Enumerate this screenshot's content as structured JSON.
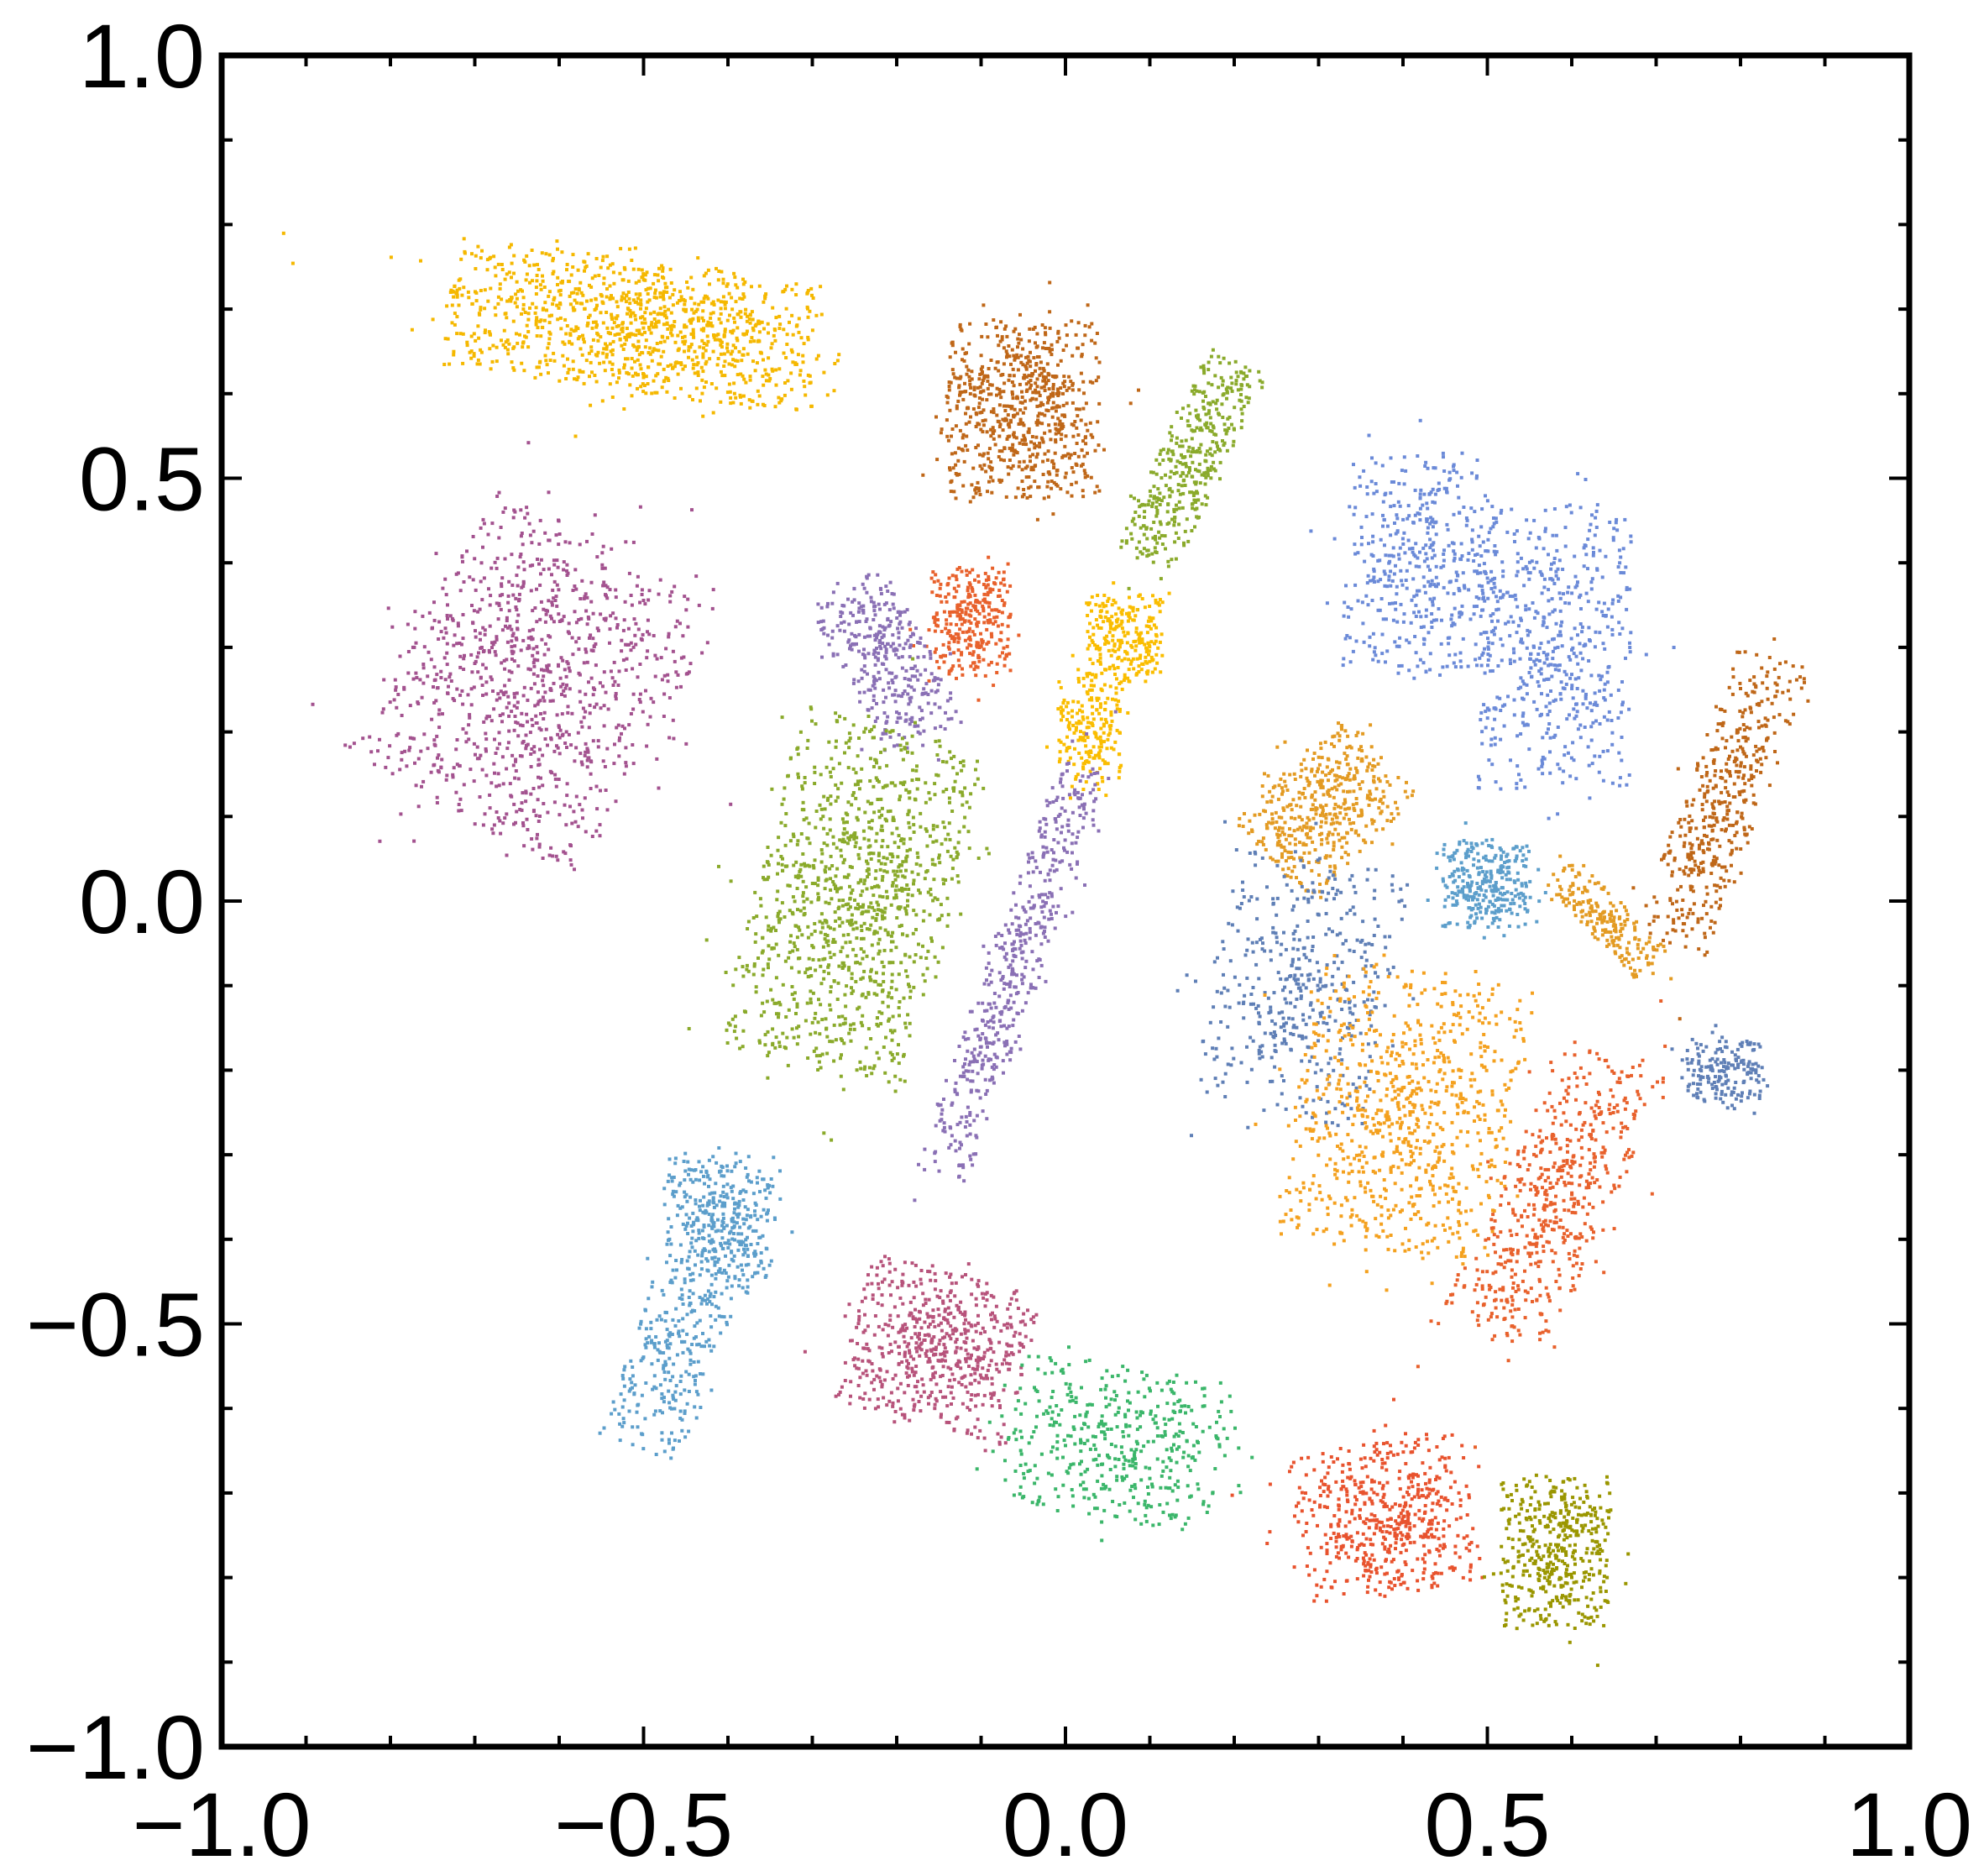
{
  "chart_data": {
    "type": "scatter",
    "title": "",
    "xlabel": "",
    "ylabel": "",
    "xlim": [
      -1.0,
      1.0
    ],
    "ylim": [
      -1.0,
      1.0
    ],
    "grid": false,
    "legend": "none",
    "x_ticks": [
      {
        "value": -1.0,
        "label": "−1.0"
      },
      {
        "value": -0.5,
        "label": "−0.5"
      },
      {
        "value": 0.0,
        "label": "0.0"
      },
      {
        "value": 0.5,
        "label": "0.5"
      },
      {
        "value": 1.0,
        "label": "1.0"
      }
    ],
    "y_ticks": [
      {
        "value": -1.0,
        "label": "−1.0"
      },
      {
        "value": -0.5,
        "label": "−0.5"
      },
      {
        "value": 0.0,
        "label": "0.0"
      },
      {
        "value": 0.5,
        "label": "0.5"
      },
      {
        "value": 1.0,
        "label": "1.0"
      }
    ],
    "minor_tick_step": 0.1,
    "clusters": [
      {
        "color": "#f5b800",
        "center": [
          -0.51,
          0.68
        ],
        "spread": [
          0.17,
          0.06
        ],
        "angle_deg": -8,
        "n": 1100
      },
      {
        "color": "#a3528f",
        "center": [
          -0.63,
          0.26
        ],
        "spread": [
          0.12,
          0.14
        ],
        "angle_deg": -30,
        "n": 1000
      },
      {
        "color": "#bf6718",
        "center": [
          -0.05,
          0.58
        ],
        "spread": [
          0.07,
          0.08
        ],
        "angle_deg": 0,
        "n": 700
      },
      {
        "color": "#8aaa2b",
        "center": [
          0.15,
          0.52
        ],
        "spread": [
          0.03,
          0.1
        ],
        "angle_deg": -25,
        "n": 400
      },
      {
        "color": "#e8612c",
        "center": [
          -0.11,
          0.33
        ],
        "spread": [
          0.035,
          0.05
        ],
        "angle_deg": 0,
        "n": 300
      },
      {
        "color": "#8a70b5",
        "center": [
          -0.21,
          0.28
        ],
        "spread": [
          0.04,
          0.08
        ],
        "angle_deg": 30,
        "n": 350
      },
      {
        "color": "#fabd00",
        "center": [
          0.07,
          0.31
        ],
        "spread": [
          0.035,
          0.04
        ],
        "angle_deg": 0,
        "n": 250
      },
      {
        "color": "#fabd00",
        "center": [
          0.03,
          0.2
        ],
        "spread": [
          0.03,
          0.05
        ],
        "angle_deg": 0,
        "n": 200
      },
      {
        "color": "#8aaa2b",
        "center": [
          -0.25,
          0.0
        ],
        "spread": [
          0.09,
          0.16
        ],
        "angle_deg": -15,
        "n": 1100
      },
      {
        "color": "#8a70b5",
        "center": [
          -0.06,
          -0.08
        ],
        "spread": [
          0.025,
          0.2
        ],
        "angle_deg": -20,
        "n": 500
      },
      {
        "color": "#6b8ad8",
        "center": [
          0.42,
          0.4
        ],
        "spread": [
          0.07,
          0.1
        ],
        "angle_deg": 0,
        "n": 450
      },
      {
        "color": "#6b8ad8",
        "center": [
          0.58,
          0.3
        ],
        "spread": [
          0.07,
          0.13
        ],
        "angle_deg": 0,
        "n": 550
      },
      {
        "color": "#e39b23",
        "center": [
          0.31,
          0.11
        ],
        "spread": [
          0.05,
          0.07
        ],
        "angle_deg": -45,
        "n": 450
      },
      {
        "color": "#bf6718",
        "center": [
          0.78,
          0.12
        ],
        "spread": [
          0.035,
          0.14
        ],
        "angle_deg": -20,
        "n": 450
      },
      {
        "color": "#5c9ecb",
        "center": [
          0.5,
          0.02
        ],
        "spread": [
          0.04,
          0.04
        ],
        "angle_deg": 0,
        "n": 300
      },
      {
        "color": "#e39b23",
        "center": [
          0.64,
          -0.02
        ],
        "spread": [
          0.02,
          0.06
        ],
        "angle_deg": 45,
        "n": 200
      },
      {
        "color": "#5f7fb6",
        "center": [
          0.28,
          -0.1
        ],
        "spread": [
          0.08,
          0.12
        ],
        "angle_deg": -10,
        "n": 450
      },
      {
        "color": "#f4a11f",
        "center": [
          0.4,
          -0.25
        ],
        "spread": [
          0.1,
          0.13
        ],
        "angle_deg": -10,
        "n": 800
      },
      {
        "color": "#5f7fb6",
        "center": [
          0.78,
          -0.2
        ],
        "spread": [
          0.035,
          0.03
        ],
        "angle_deg": 0,
        "n": 180
      },
      {
        "color": "#e8612c",
        "center": [
          0.58,
          -0.35
        ],
        "spread": [
          0.05,
          0.14
        ],
        "angle_deg": -25,
        "n": 550
      },
      {
        "color": "#5c9ecb",
        "center": [
          -0.41,
          -0.38
        ],
        "spread": [
          0.05,
          0.06
        ],
        "angle_deg": 0,
        "n": 400
      },
      {
        "color": "#5c9ecb",
        "center": [
          -0.47,
          -0.55
        ],
        "spread": [
          0.04,
          0.08
        ],
        "angle_deg": -20,
        "n": 250
      },
      {
        "color": "#b7537b",
        "center": [
          -0.15,
          -0.53
        ],
        "spread": [
          0.08,
          0.07
        ],
        "angle_deg": -15,
        "n": 600
      },
      {
        "color": "#3bb66a",
        "center": [
          0.06,
          -0.64
        ],
        "spread": [
          0.1,
          0.07
        ],
        "angle_deg": -10,
        "n": 450
      },
      {
        "color": "#e8532e",
        "center": [
          0.38,
          -0.73
        ],
        "spread": [
          0.08,
          0.07
        ],
        "angle_deg": 10,
        "n": 550
      },
      {
        "color": "#9a9600",
        "center": [
          0.58,
          -0.77
        ],
        "spread": [
          0.05,
          0.07
        ],
        "angle_deg": 0,
        "n": 450
      }
    ]
  }
}
